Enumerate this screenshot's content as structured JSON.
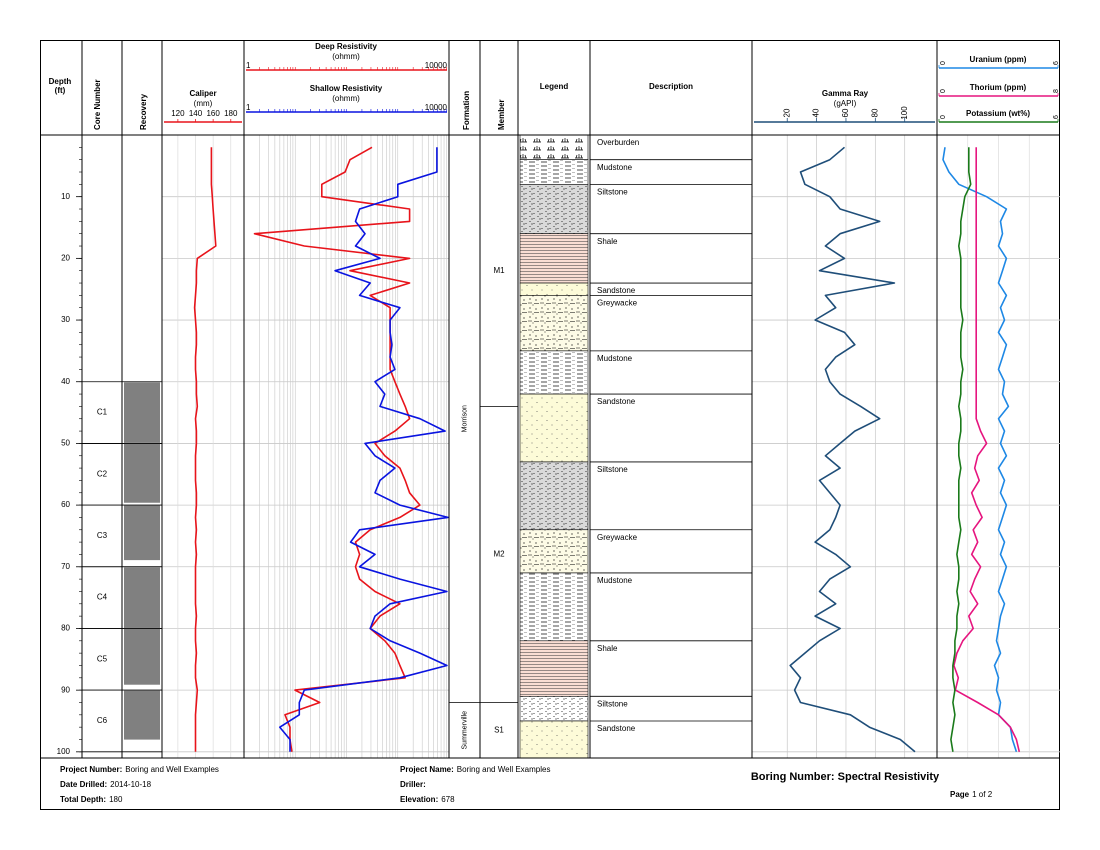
{
  "chart_data": {
    "type": "log",
    "depths": [
      2,
      4,
      6,
      8,
      10,
      12,
      14,
      16,
      18,
      20,
      22,
      24,
      26,
      28,
      30,
      32,
      34,
      36,
      38,
      40,
      42,
      44,
      46,
      48,
      50,
      52,
      54,
      56,
      58,
      60,
      62,
      64,
      66,
      68,
      70,
      72,
      74,
      76,
      78,
      80,
      82,
      84,
      86,
      88,
      90,
      92,
      94,
      96,
      98,
      100
    ],
    "depth": {
      "title": "Depth",
      "unit": "(ft)",
      "ylim": [
        0,
        101
      ],
      "yticks": [
        10,
        20,
        30,
        40,
        50,
        60,
        70,
        80,
        90,
        100
      ]
    },
    "cores": {
      "title": "Core Number",
      "items": [
        {
          "label": "C1",
          "top": 40,
          "bottom": 50
        },
        {
          "label": "C2",
          "top": 50,
          "bottom": 60
        },
        {
          "label": "C3",
          "top": 60,
          "bottom": 70
        },
        {
          "label": "C4",
          "top": 70,
          "bottom": 80
        },
        {
          "label": "C5",
          "top": 80,
          "bottom": 90
        },
        {
          "label": "C6",
          "top": 90,
          "bottom": 100
        }
      ]
    },
    "recovery": {
      "title": "Recovery",
      "color": "#808080",
      "items": [
        {
          "top": 40,
          "bottom": 50
        },
        {
          "top": 50,
          "bottom": 59.7
        },
        {
          "top": 60,
          "bottom": 69
        },
        {
          "top": 70,
          "bottom": 80
        },
        {
          "top": 80,
          "bottom": 89.2
        },
        {
          "top": 90,
          "bottom": 98.1
        }
      ]
    },
    "caliper": {
      "title": "Caliper",
      "unit": "(mm)",
      "color": "#e8141b",
      "xlim": [
        102,
        195
      ],
      "xticks": [
        120,
        140,
        160,
        180
      ],
      "values": [
        158,
        158,
        158,
        158,
        159,
        160,
        161,
        162,
        163,
        142,
        141,
        141,
        140,
        139,
        140,
        141,
        141,
        140,
        140,
        141,
        141,
        142,
        140,
        141,
        141,
        140,
        140,
        140,
        141,
        141,
        140,
        141,
        140,
        141,
        140,
        140,
        140,
        140,
        141,
        140,
        140,
        141,
        140,
        140,
        142,
        141,
        140,
        140,
        140,
        140
      ]
    },
    "resistivity": {
      "log_scale": true,
      "xlim": [
        1,
        10000
      ],
      "xticks": [
        1,
        10000
      ],
      "xgrid": [
        1,
        2,
        3,
        4,
        5,
        6,
        7,
        8,
        9,
        10,
        20,
        30,
        40,
        50,
        60,
        70,
        80,
        90,
        100,
        200,
        300,
        400,
        500,
        600,
        700,
        800,
        900,
        1000,
        2000,
        3000,
        4000,
        5000,
        6000,
        7000,
        8000,
        9000,
        10000
      ],
      "series": [
        {
          "name": "Deep Resistivity",
          "unit": "(ohmm)",
          "color": "#e8141b",
          "values": [
            315,
            117,
            94,
            33,
            33,
            1700,
            1700,
            1.6,
            15,
            1700,
            117,
            1700,
            290,
            710,
            710,
            710,
            710,
            710,
            710,
            880,
            1100,
            1400,
            1700,
            880,
            360,
            560,
            1100,
            1400,
            1700,
            2700,
            1100,
            290,
            150,
            180,
            150,
            180,
            360,
            1100,
            450,
            290,
            560,
            880,
            1100,
            1400,
            9.9,
            30,
            6.3,
            7.9,
            7.9,
            8.6
          ]
        },
        {
          "name": "Shallow Resistivity",
          "unit": "(ohmm)",
          "color": "#0a14e0",
          "values": [
            5800,
            5800,
            5800,
            1000,
            1000,
            180,
            150,
            230,
            150,
            450,
            60,
            290,
            180,
            1100,
            710,
            710,
            770,
            710,
            880,
            360,
            560,
            450,
            2700,
            8400,
            230,
            360,
            880,
            450,
            360,
            1100,
            9500,
            180,
            120,
            360,
            180,
            1100,
            9100,
            710,
            360,
            290,
            710,
            2700,
            9100,
            1100,
            15,
            12,
            12,
            5,
            7.9,
            7.9
          ]
        }
      ]
    },
    "formation": {
      "title": "Formation",
      "items": [
        {
          "name": "Morrison",
          "top": 0,
          "bottom": 92
        },
        {
          "name": "Summerville",
          "top": 92,
          "bottom": 101
        }
      ]
    },
    "member": {
      "title": "Member",
      "items": [
        {
          "name": "M1",
          "top": 0,
          "bottom": 44
        },
        {
          "name": "M2",
          "top": 44,
          "bottom": 92
        },
        {
          "name": "S1",
          "top": 92,
          "bottom": 101
        }
      ]
    },
    "lithology": {
      "title": "Legend",
      "description_title": "Description",
      "items": [
        {
          "name": "Overburden",
          "top": 0,
          "bottom": 4,
          "color": "#ffffff",
          "pattern": "grass"
        },
        {
          "name": "Mudstone",
          "top": 4,
          "bottom": 8,
          "color": "#ffffff",
          "pattern": "dash"
        },
        {
          "name": "Siltstone",
          "top": 8,
          "bottom": 16,
          "color": "#d9d9d9",
          "pattern": "silt"
        },
        {
          "name": "Shale",
          "top": 16,
          "bottom": 24,
          "color": "#f9ddd3",
          "pattern": "shale"
        },
        {
          "name": "Sandstone",
          "top": 24,
          "bottom": 26,
          "color": "#fdfbd8",
          "pattern": "dots"
        },
        {
          "name": "Greywacke",
          "top": 26,
          "bottom": 35,
          "color": "#fdfbe6",
          "pattern": "greywacke"
        },
        {
          "name": "Mudstone",
          "top": 35,
          "bottom": 42,
          "color": "#ffffff",
          "pattern": "dash"
        },
        {
          "name": "Sandstone",
          "top": 42,
          "bottom": 53,
          "color": "#fdfbd8",
          "pattern": "dots"
        },
        {
          "name": "Siltstone",
          "top": 53,
          "bottom": 64,
          "color": "#d9d9d9",
          "pattern": "silt"
        },
        {
          "name": "Greywacke",
          "top": 64,
          "bottom": 71,
          "color": "#fdfbe6",
          "pattern": "greywacke"
        },
        {
          "name": "Mudstone",
          "top": 71,
          "bottom": 82,
          "color": "#ffffff",
          "pattern": "dash"
        },
        {
          "name": "Shale",
          "top": 82,
          "bottom": 91,
          "color": "#f9ddd3",
          "pattern": "shale"
        },
        {
          "name": "Siltstone",
          "top": 91,
          "bottom": 95,
          "color": "#ffffff",
          "pattern": "silt"
        },
        {
          "name": "Sandstone",
          "top": 95,
          "bottom": 101,
          "color": "#fdfbd8",
          "pattern": "dots"
        }
      ]
    },
    "gamma": {
      "title": "Gamma Ray",
      "unit": "(gAPI)",
      "color": "#1f4e79",
      "xlim": [
        -4,
        122
      ],
      "xticks": [
        20,
        40,
        60,
        80,
        100
      ],
      "values": [
        59,
        49,
        29,
        32,
        49,
        56,
        83,
        56,
        46,
        59,
        42,
        93,
        46,
        53,
        39,
        59,
        66,
        53,
        46,
        49,
        56,
        70,
        83,
        66,
        56,
        46,
        56,
        42,
        49,
        56,
        53,
        49,
        39,
        53,
        63,
        49,
        42,
        53,
        39,
        56,
        42,
        32,
        22,
        29,
        25,
        29,
        63,
        76,
        97,
        107
      ]
    },
    "spectral": {
      "series": [
        {
          "name": "Uranium (ppm)",
          "color": "#1e88e5",
          "xlim": [
            0,
            6
          ],
          "xticks": [
            0,
            6
          ],
          "values": [
            0.3,
            0.2,
            0.5,
            1.0,
            2.4,
            3.4,
            3.1,
            3.2,
            3.0,
            3.4,
            3.2,
            3.0,
            3.4,
            3.1,
            3.3,
            3.0,
            3.4,
            3.2,
            3.0,
            3.3,
            3.2,
            3.5,
            3.0,
            3.3,
            3.1,
            3.4,
            3.0,
            3.3,
            3.1,
            3.4,
            3.2,
            3.0,
            3.3,
            3.1,
            3.4,
            3.2,
            3.0,
            3.3,
            3.1,
            3.0,
            2.9,
            3.1,
            2.8,
            3.0,
            2.9,
            3.1,
            3.0,
            3.6,
            3.7,
            3.9
          ]
        },
        {
          "name": "Thorium (ppm)",
          "color": "#e6157f",
          "xlim": [
            0,
            8
          ],
          "xticks": [
            0,
            8
          ],
          "values": [
            2.5,
            2.5,
            2.5,
            2.5,
            2.5,
            2.5,
            2.5,
            2.5,
            2.5,
            2.5,
            2.5,
            2.5,
            2.5,
            2.5,
            2.5,
            2.5,
            2.5,
            2.5,
            2.5,
            2.5,
            2.5,
            2.5,
            2.5,
            2.8,
            3.2,
            2.6,
            2.4,
            2.7,
            2.2,
            2.5,
            2.9,
            2.3,
            2.6,
            2.2,
            2.8,
            2.4,
            2.1,
            2.6,
            2.0,
            2.3,
            1.6,
            1.2,
            1.0,
            1.3,
            1.1,
            2.6,
            4.0,
            4.8,
            5.2,
            5.4
          ]
        },
        {
          "name": "Potassium (wt%)",
          "color": "#1a7a1a",
          "xlim": [
            0,
            6
          ],
          "xticks": [
            0,
            6
          ],
          "values": [
            1.5,
            1.5,
            1.5,
            1.6,
            1.3,
            1.2,
            1.1,
            1.1,
            1.0,
            1.1,
            1.1,
            1.1,
            1.1,
            1.1,
            1.2,
            1.1,
            1.1,
            1.1,
            1.2,
            1.1,
            1.1,
            1.0,
            1.1,
            1.1,
            1.0,
            1.0,
            1.1,
            1.0,
            1.0,
            1.0,
            1.0,
            1.1,
            1.0,
            0.9,
            1.0,
            1.0,
            0.9,
            1.0,
            0.9,
            0.9,
            0.8,
            0.8,
            0.7,
            0.7,
            0.8,
            0.7,
            0.8,
            0.7,
            0.6,
            0.7
          ]
        }
      ]
    }
  },
  "footer": {
    "left": [
      {
        "label": "Project Number:",
        "value": "Boring and Well Examples"
      },
      {
        "label": "Date Drilled:",
        "value": "2014-10-18"
      },
      {
        "label": "Total Depth:",
        "value": 180
      }
    ],
    "middle": [
      {
        "label": "Project Name:",
        "value": "Boring and Well Examples"
      },
      {
        "label": "Driller:"
      },
      {
        "label": "Elevation:",
        "value": 678
      }
    ],
    "boring": "Boring Number: Spectral Resistivity",
    "page_label": "Page",
    "page": "1 of 2"
  }
}
